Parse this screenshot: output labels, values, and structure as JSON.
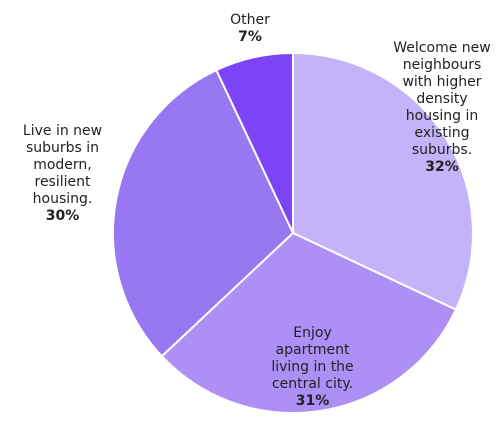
{
  "chart_data": {
    "type": "pie",
    "categories": [
      "Welcome new neighbours with higher density housing in existing suburbs.",
      "Enjoy apartment living in the central city.",
      "Live in new suburbs in modern, resilient housing.",
      "Other"
    ],
    "values": [
      32,
      31,
      30,
      7
    ],
    "value_labels": [
      "32%",
      "31%",
      "30%",
      "7%"
    ],
    "colors": [
      "#c5b3f9",
      "#ad8ff6",
      "#9877f2",
      "#7c44f6"
    ]
  }
}
